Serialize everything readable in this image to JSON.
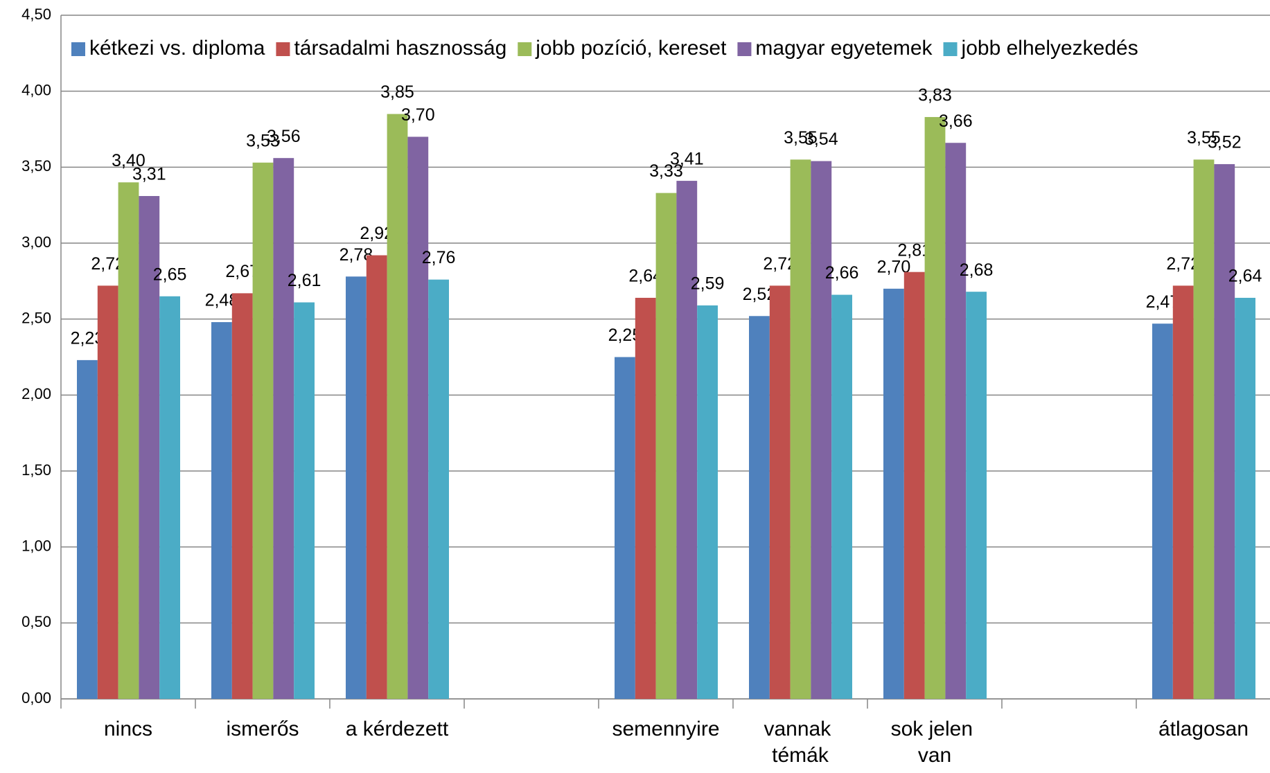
{
  "chart_data": {
    "type": "bar",
    "categories": [
      "nincs",
      "ismerős",
      "a kérdezett",
      null,
      "semennyire",
      "vannak témák",
      "sok jelen van",
      null,
      "átlagosan"
    ],
    "series": [
      {
        "name": "kétkezi vs. diploma",
        "color": "#4f81bd",
        "values": [
          2.23,
          2.48,
          2.78,
          null,
          2.25,
          2.52,
          2.7,
          null,
          2.47
        ],
        "value_labels": [
          "2,23",
          "2,48",
          "2,78",
          null,
          "2,25",
          "2,52",
          "2,70",
          null,
          "2,47"
        ]
      },
      {
        "name": "társadalmi hasznosság",
        "color": "#c0504d",
        "values": [
          2.72,
          2.67,
          2.92,
          null,
          2.64,
          2.72,
          2.81,
          null,
          2.72
        ],
        "value_labels": [
          "2,72",
          "2,67",
          "2,92",
          null,
          "2,64",
          "2,72",
          "2,81",
          null,
          "2,72"
        ]
      },
      {
        "name": "jobb pozíció, kereset",
        "color": "#9bbb59",
        "values": [
          3.4,
          3.53,
          3.85,
          null,
          3.33,
          3.55,
          3.83,
          null,
          3.55
        ],
        "value_labels": [
          "3,40",
          "3,53",
          "3,85",
          null,
          "3,33",
          "3,55",
          "3,83",
          null,
          "3,55"
        ]
      },
      {
        "name": "magyar egyetemek",
        "color": "#8064a2",
        "values": [
          3.31,
          3.56,
          3.7,
          null,
          3.41,
          3.54,
          3.66,
          null,
          3.52
        ],
        "value_labels": [
          "3,31",
          "3,56",
          "3,70",
          null,
          "3,41",
          "3,54",
          "3,66",
          null,
          "3,52"
        ]
      },
      {
        "name": "jobb elhelyezkedés",
        "color": "#4bacc6",
        "values": [
          2.65,
          2.61,
          2.76,
          null,
          2.59,
          2.66,
          2.68,
          null,
          2.64
        ],
        "value_labels": [
          "2,65",
          "2,61",
          "2,76",
          null,
          "2,59",
          "2,66",
          "2,68",
          null,
          "2,64"
        ]
      }
    ],
    "ylim": [
      0,
      4.5
    ],
    "yticks": [
      {
        "value": 0,
        "label": "0,00"
      },
      {
        "value": 0.5,
        "label": "0,50"
      },
      {
        "value": 1,
        "label": "1,00"
      },
      {
        "value": 1.5,
        "label": "1,50"
      },
      {
        "value": 2,
        "label": "2,00"
      },
      {
        "value": 2.5,
        "label": "2,50"
      },
      {
        "value": 3,
        "label": "3,00"
      },
      {
        "value": 3.5,
        "label": "3,50"
      },
      {
        "value": 4,
        "label": "4,00"
      },
      {
        "value": 4.5,
        "label": "4,50"
      }
    ],
    "grid": true,
    "legend": "top"
  }
}
